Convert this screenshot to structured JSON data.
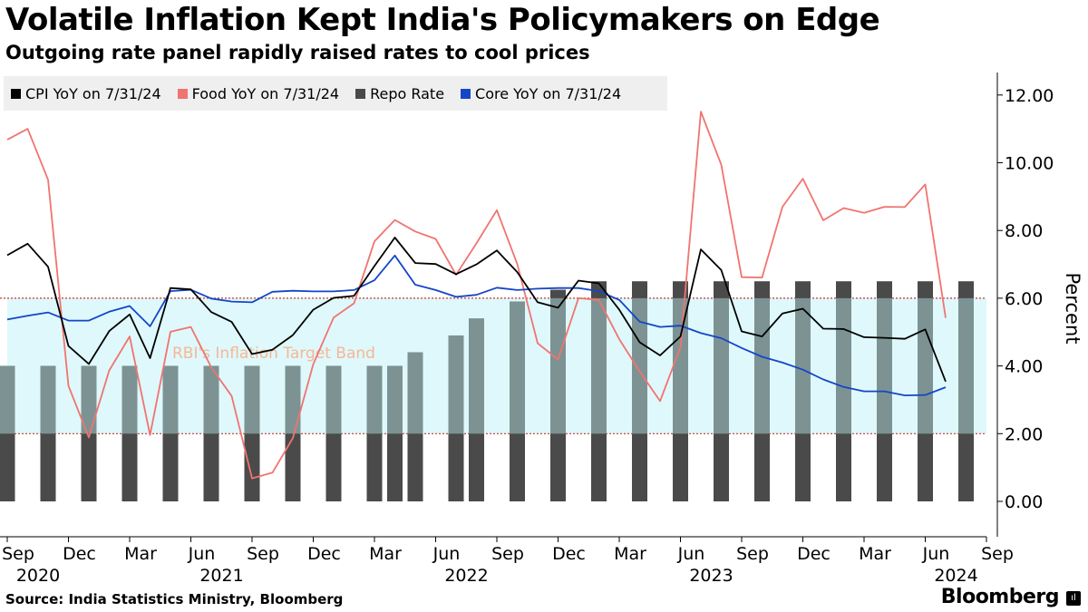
{
  "title": "Volatile Inflation Kept India's Policymakers on Edge",
  "subtitle": "Outgoing rate panel rapidly raised rates to cool prices",
  "source": "Source: India Statistics Ministry, Bloomberg",
  "brand": "Bloomberg",
  "brand_mark": "ıl",
  "colors": {
    "cpi": "#000000",
    "food": "#f07470",
    "repo": "#4a4a4a",
    "core": "#1446c8",
    "band": "#dff8fb",
    "band_line": "#c0392b",
    "axis": "#000000"
  },
  "legend": [
    {
      "label": "CPI YoY on 7/31/24",
      "color": "#000000"
    },
    {
      "label": "Food YoY on 7/31/24",
      "color": "#f07470"
    },
    {
      "label": "Repo Rate",
      "color": "#4a4a4a"
    },
    {
      "label": "Core YoY on 7/31/24",
      "color": "#1446c8"
    }
  ],
  "chart_data": {
    "type": "bar+line",
    "ylabel": "Percent",
    "ylim": [
      -1,
      12.6
    ],
    "yticks": [
      "0.00",
      "2.00",
      "4.00",
      "6.00",
      "8.00",
      "10.00",
      "12.00"
    ],
    "ytick_values": [
      0,
      2,
      4,
      6,
      8,
      10,
      12
    ],
    "x_start": "2020-09",
    "x_end": "2024-09",
    "xticks": [
      {
        "month": "Sep",
        "year": "2020"
      },
      {
        "month": "Dec",
        "year": ""
      },
      {
        "month": "Mar",
        "year": ""
      },
      {
        "month": "Jun",
        "year": "2021"
      },
      {
        "month": "Sep",
        "year": ""
      },
      {
        "month": "Dec",
        "year": ""
      },
      {
        "month": "Mar",
        "year": ""
      },
      {
        "month": "Jun",
        "year": "2022"
      },
      {
        "month": "Sep",
        "year": ""
      },
      {
        "month": "Dec",
        "year": ""
      },
      {
        "month": "Mar",
        "year": ""
      },
      {
        "month": "Jun",
        "year": "2023"
      },
      {
        "month": "Sep",
        "year": ""
      },
      {
        "month": "Dec",
        "year": ""
      },
      {
        "month": "Mar",
        "year": ""
      },
      {
        "month": "Jun",
        "year": "2024"
      },
      {
        "month": "Sep",
        "year": ""
      }
    ],
    "target_band": {
      "low": 2,
      "high": 6,
      "label": "RBI's Inflation Target Band"
    },
    "series": [
      {
        "name": "CPI YoY on 7/31/24",
        "type": "line",
        "x": [
          "2020-09",
          "2020-10",
          "2020-11",
          "2020-12",
          "2021-01",
          "2021-02",
          "2021-03",
          "2021-04",
          "2021-05",
          "2021-06",
          "2021-07",
          "2021-08",
          "2021-09",
          "2021-10",
          "2021-11",
          "2021-12",
          "2022-01",
          "2022-02",
          "2022-03",
          "2022-04",
          "2022-05",
          "2022-06",
          "2022-07",
          "2022-08",
          "2022-09",
          "2022-10",
          "2022-11",
          "2022-12",
          "2023-01",
          "2023-02",
          "2023-03",
          "2023-04",
          "2023-05",
          "2023-06",
          "2023-07",
          "2023-08",
          "2023-09",
          "2023-10",
          "2023-11",
          "2023-12",
          "2024-01",
          "2024-02",
          "2024-03",
          "2024-04",
          "2024-05",
          "2024-06",
          "2024-07"
        ],
        "values": [
          7.27,
          7.61,
          6.93,
          4.59,
          4.06,
          5.03,
          5.52,
          4.23,
          6.3,
          6.26,
          5.59,
          5.3,
          4.35,
          4.48,
          4.91,
          5.66,
          6.01,
          6.07,
          6.95,
          7.79,
          7.04,
          7.01,
          6.71,
          7.0,
          7.41,
          6.77,
          5.88,
          5.72,
          6.52,
          6.44,
          5.66,
          4.7,
          4.31,
          4.87,
          7.44,
          6.83,
          5.02,
          4.87,
          5.55,
          5.69,
          5.1,
          5.09,
          4.85,
          4.83,
          4.8,
          5.08,
          3.54
        ]
      },
      {
        "name": "Food YoY on 7/31/24",
        "type": "line",
        "x": [
          "2020-09",
          "2020-10",
          "2020-11",
          "2020-12",
          "2021-01",
          "2021-02",
          "2021-03",
          "2021-04",
          "2021-05",
          "2021-06",
          "2021-07",
          "2021-08",
          "2021-09",
          "2021-10",
          "2021-11",
          "2021-12",
          "2022-01",
          "2022-02",
          "2022-03",
          "2022-04",
          "2022-05",
          "2022-06",
          "2022-07",
          "2022-08",
          "2022-09",
          "2022-10",
          "2022-11",
          "2022-12",
          "2023-01",
          "2023-02",
          "2023-03",
          "2023-04",
          "2023-05",
          "2023-06",
          "2023-07",
          "2023-08",
          "2023-09",
          "2023-10",
          "2023-11",
          "2023-12",
          "2024-01",
          "2024-02",
          "2024-03",
          "2024-04",
          "2024-05",
          "2024-06",
          "2024-07"
        ],
        "values": [
          10.68,
          11.0,
          9.5,
          3.41,
          1.89,
          3.87,
          4.87,
          1.96,
          5.01,
          5.15,
          3.96,
          3.11,
          0.68,
          0.85,
          1.87,
          4.05,
          5.43,
          5.85,
          7.68,
          8.31,
          7.97,
          7.75,
          6.69,
          7.62,
          8.6,
          7.01,
          4.67,
          4.19,
          6.0,
          5.95,
          4.79,
          3.84,
          2.96,
          4.55,
          11.51,
          9.94,
          6.62,
          6.61,
          8.7,
          9.53,
          8.3,
          8.66,
          8.52,
          8.7,
          8.69,
          9.36,
          5.42
        ]
      },
      {
        "name": "Core YoY on 7/31/24",
        "type": "line",
        "x": [
          "2020-09",
          "2020-10",
          "2020-11",
          "2020-12",
          "2021-01",
          "2021-02",
          "2021-03",
          "2021-04",
          "2021-05",
          "2021-06",
          "2021-07",
          "2021-08",
          "2021-09",
          "2021-10",
          "2021-11",
          "2021-12",
          "2022-01",
          "2022-02",
          "2022-03",
          "2022-04",
          "2022-05",
          "2022-06",
          "2022-07",
          "2022-08",
          "2022-09",
          "2022-10",
          "2022-11",
          "2022-12",
          "2023-01",
          "2023-02",
          "2023-03",
          "2023-04",
          "2023-05",
          "2023-06",
          "2023-07",
          "2023-08",
          "2023-09",
          "2023-10",
          "2023-11",
          "2023-12",
          "2024-01",
          "2024-02",
          "2024-03",
          "2024-04",
          "2024-05",
          "2024-06",
          "2024-07"
        ],
        "values": [
          5.37,
          5.48,
          5.58,
          5.34,
          5.34,
          5.6,
          5.77,
          5.17,
          6.21,
          6.25,
          5.99,
          5.9,
          5.88,
          6.19,
          6.22,
          6.2,
          6.2,
          6.24,
          6.53,
          7.26,
          6.4,
          6.24,
          6.04,
          6.1,
          6.31,
          6.24,
          6.28,
          6.3,
          6.3,
          6.21,
          5.95,
          5.31,
          5.15,
          5.19,
          4.97,
          4.82,
          4.53,
          4.27,
          4.1,
          3.89,
          3.6,
          3.38,
          3.25,
          3.25,
          3.13,
          3.14,
          3.37
        ]
      },
      {
        "name": "Repo Rate",
        "type": "bar",
        "x": [
          "2020-09",
          "2020-11",
          "2021-01",
          "2021-03",
          "2021-05",
          "2021-07",
          "2021-09",
          "2021-11",
          "2022-01",
          "2022-03",
          "2022-04",
          "2022-05",
          "2022-07",
          "2022-08",
          "2022-10",
          "2022-12",
          "2023-02",
          "2023-04",
          "2023-06",
          "2023-08",
          "2023-10",
          "2023-12",
          "2024-02",
          "2024-04",
          "2024-06",
          "2024-08"
        ],
        "values": [
          4.0,
          4.0,
          4.0,
          4.0,
          4.0,
          4.0,
          4.0,
          4.0,
          4.0,
          4.0,
          4.0,
          4.4,
          4.9,
          5.4,
          5.9,
          6.25,
          6.5,
          6.5,
          6.5,
          6.5,
          6.5,
          6.5,
          6.5,
          6.5,
          6.5,
          6.5
        ]
      }
    ]
  }
}
